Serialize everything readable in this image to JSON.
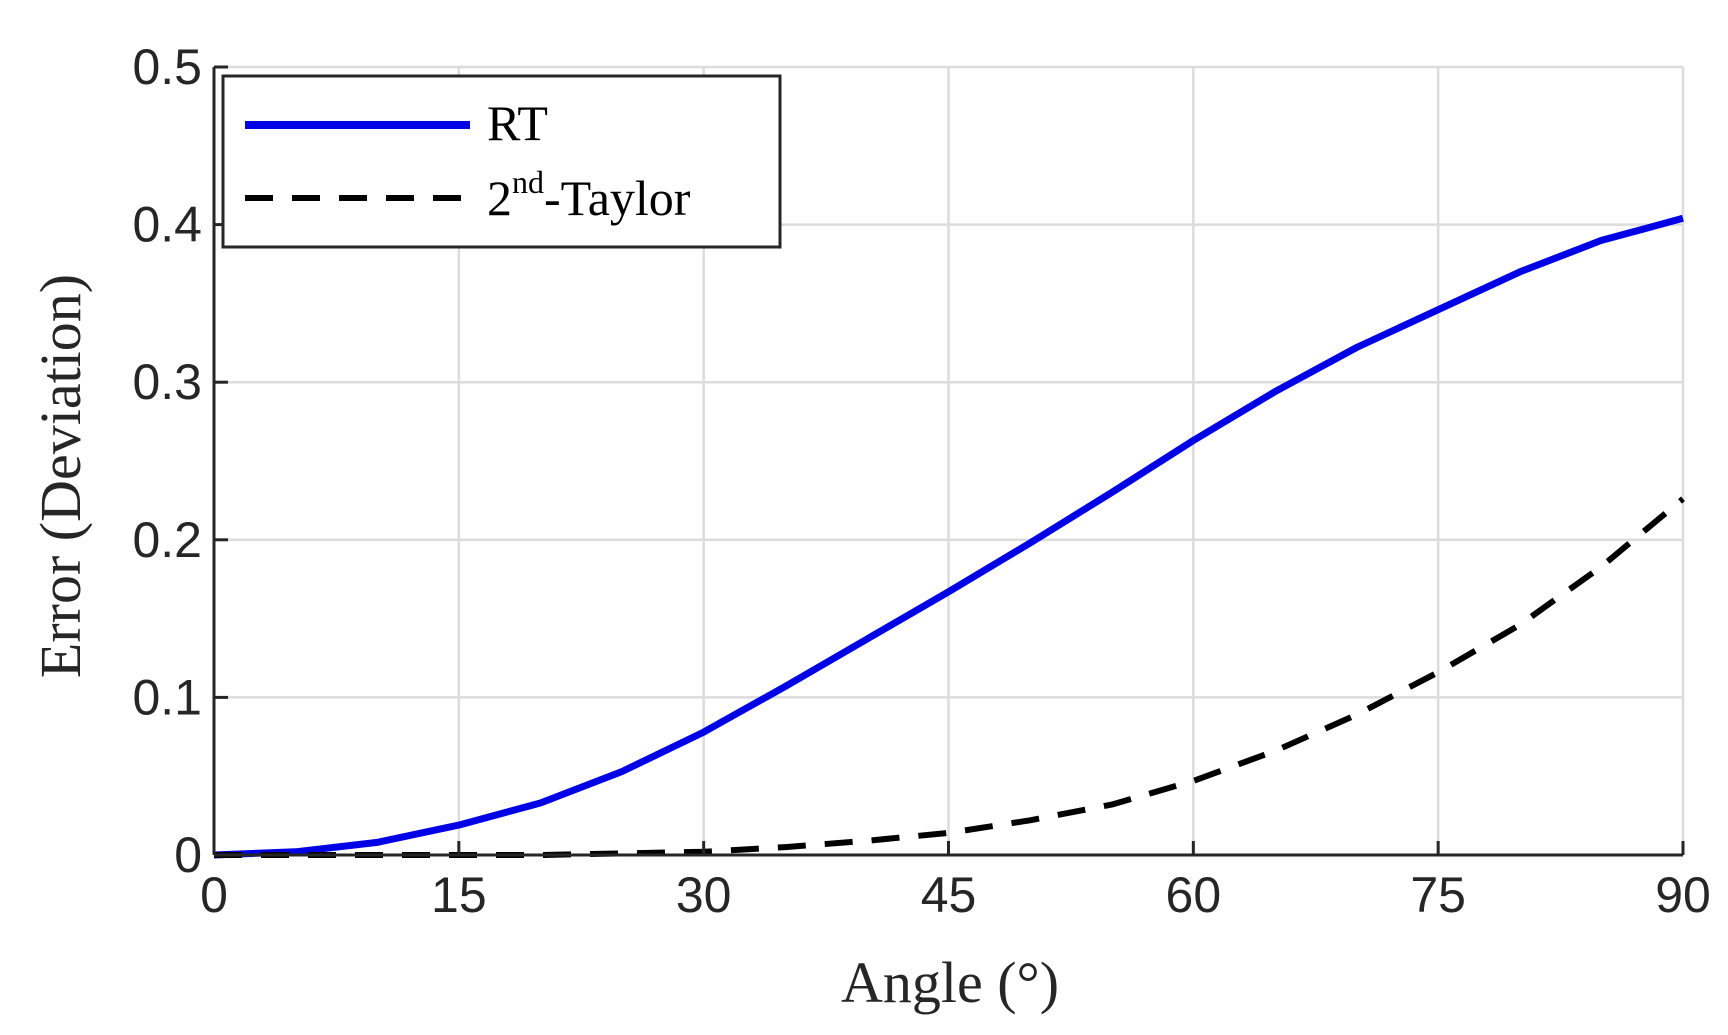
{
  "chart_data": {
    "type": "line",
    "xlabel": "Angle (°)",
    "ylabel": "Error (Deviation)",
    "xlim": [
      0,
      90
    ],
    "ylim": [
      0,
      0.5
    ],
    "xticks": [
      0,
      15,
      30,
      45,
      60,
      75,
      90
    ],
    "yticks": [
      0,
      0.1,
      0.2,
      0.3,
      0.4,
      0.5
    ],
    "xtick_labels": [
      "0",
      "15",
      "30",
      "45",
      "60",
      "75",
      "90"
    ],
    "ytick_labels": [
      "0",
      "0.1",
      "0.2",
      "0.3",
      "0.4",
      "0.5"
    ],
    "grid": true,
    "legend_position": "top-left",
    "series": [
      {
        "name": "RT",
        "legend_base": "RT",
        "legend_sup": "",
        "legend_suffix": "",
        "color": "#0000e6",
        "style": "solid",
        "x": [
          0,
          5,
          10,
          15,
          20,
          25,
          30,
          35,
          40,
          45,
          50,
          55,
          60,
          65,
          70,
          75,
          80,
          85,
          90
        ],
        "y": [
          0,
          0.002,
          0.008,
          0.019,
          0.033,
          0.053,
          0.078,
          0.107,
          0.137,
          0.167,
          0.198,
          0.23,
          0.263,
          0.294,
          0.322,
          0.346,
          0.37,
          0.39,
          0.404
        ]
      },
      {
        "name": "2nd-Taylor",
        "legend_base": "2",
        "legend_sup": "nd",
        "legend_suffix": "-Taylor",
        "color": "#000000",
        "style": "dashed",
        "x": [
          0,
          10,
          15,
          20,
          25,
          30,
          35,
          40,
          45,
          50,
          55,
          60,
          65,
          70,
          75,
          80,
          85,
          90
        ],
        "y": [
          0,
          0,
          0,
          0,
          0.001,
          0.002,
          0.005,
          0.009,
          0.014,
          0.022,
          0.032,
          0.047,
          0.066,
          0.089,
          0.116,
          0.146,
          0.183,
          0.226
        ]
      }
    ]
  }
}
